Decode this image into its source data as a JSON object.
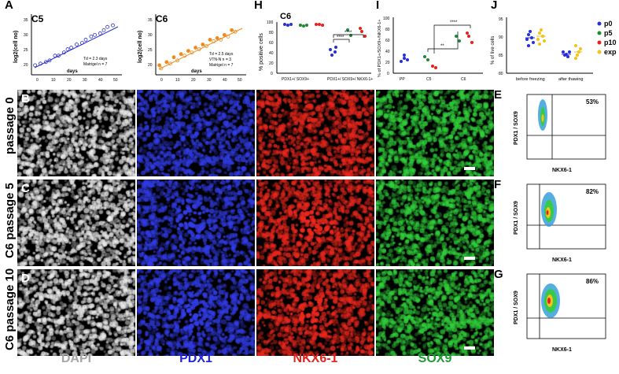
{
  "colors": {
    "blue": "#2a2fd0",
    "green": "#1f8a34",
    "red": "#e0231c",
    "yellow": "#f2c31a",
    "orange": "#ee8a1d"
  },
  "panels": {
    "A": {
      "letter": "A",
      "title": "C5",
      "ylabel": "log2(cell no)",
      "xlabel": "days",
      "note1": "Td = 2.3 days",
      "legend": "Matrigel n = 7",
      "xticks": [
        "0",
        "10",
        "20",
        "30",
        "40",
        "50"
      ],
      "yticks": [
        "20",
        "25",
        "30",
        "35"
      ]
    },
    "A2": {
      "title": "C6",
      "ylabel": "log2(cell no)",
      "xlabel": "days",
      "note1": "Td = 2.5 days",
      "legend1": "VTN-N n = 3",
      "legend2": "Matrigel n = 7",
      "xticks": [
        "0",
        "10",
        "20",
        "30",
        "40",
        "50"
      ],
      "yticks": [
        "20",
        "25",
        "30",
        "35"
      ]
    },
    "H": {
      "letter": "H",
      "title": "C6",
      "ylabel": "% positive cells",
      "yticks": [
        "0",
        "20",
        "40",
        "60",
        "80",
        "100"
      ],
      "groups": [
        "PDX1+/ SOX9+",
        "PDX1+/ SOX9+/ NKX6-1+"
      ],
      "sig": "****"
    },
    "I": {
      "letter": "I",
      "ylabel": "% of PDX1+/SOX9+/NKX6-1+",
      "yticks": [
        "0",
        "20",
        "40",
        "60",
        "80",
        "100"
      ],
      "groups": [
        "PP",
        "C5",
        "C6"
      ],
      "sig1": "**",
      "sig2": "****"
    },
    "J": {
      "letter": "J",
      "ylabel": "% of live cells",
      "yticks": [
        "80",
        "85",
        "90",
        "95"
      ],
      "groups": [
        "before freezing",
        "after thawing"
      ],
      "legend": [
        "p0",
        "p5",
        "p10",
        "exp"
      ]
    },
    "E": {
      "letter": "E",
      "pct": "53%",
      "ylabel": "PDX1 / SOX9",
      "xlabel": "NKX6-1"
    },
    "F": {
      "letter": "F",
      "pct": "82%",
      "ylabel": "PDX1 / SOX9",
      "xlabel": "NKX6-1"
    },
    "G": {
      "letter": "G",
      "pct": "86%",
      "ylabel": "PDX1 / SOX9",
      "xlabel": "NKX6-1"
    }
  },
  "rows": [
    {
      "letter": "B",
      "label": "passage 0"
    },
    {
      "letter": "C",
      "label": "C6 passage 5"
    },
    {
      "letter": "D",
      "label": "C6 passage 10"
    }
  ],
  "columns": [
    {
      "label": "DAPI",
      "color": "#a6a6a6"
    },
    {
      "label": "PDX1",
      "color": "#2222d8"
    },
    {
      "label": "NKX6-1",
      "color": "#e0231c"
    },
    {
      "label": "SOX9",
      "color": "#1f9a34"
    }
  ],
  "chart_data": [
    {
      "type": "scatter",
      "title": "C5",
      "xlabel": "days",
      "ylabel": "log2(cell no)",
      "xlim": [
        0,
        50
      ],
      "ylim": [
        18,
        37
      ],
      "series": [
        {
          "name": "Matrigel n = 7",
          "x": [
            2,
            5,
            8,
            10,
            13,
            15,
            18,
            20,
            22,
            25,
            28,
            30,
            33,
            35,
            38,
            40,
            42,
            45
          ],
          "y": [
            21,
            21.5,
            22,
            22.5,
            24,
            24,
            25,
            26,
            26.5,
            27.5,
            28,
            29,
            30,
            30.5,
            31,
            32,
            33,
            33.5
          ]
        }
      ]
    },
    {
      "type": "scatter",
      "title": "C6",
      "xlabel": "days",
      "ylabel": "log2(cell no)",
      "xlim": [
        0,
        50
      ],
      "ylim": [
        18,
        37
      ],
      "series": [
        {
          "name": "VTN-N n = 3",
          "x": [
            2,
            6,
            10,
            14,
            18,
            22,
            26,
            30,
            34,
            38,
            42
          ],
          "y": [
            21,
            22,
            23.5,
            24.5,
            25.5,
            26.5,
            27.5,
            29,
            29.5,
            30.5,
            32
          ]
        },
        {
          "name": "Matrigel n = 7",
          "x": [
            3,
            8,
            12,
            16,
            20,
            24,
            28,
            32,
            36,
            40,
            44
          ],
          "y": [
            20,
            21.5,
            22.5,
            24,
            25,
            26,
            27,
            28.5,
            29,
            30,
            31.5
          ]
        }
      ]
    }
  ]
}
